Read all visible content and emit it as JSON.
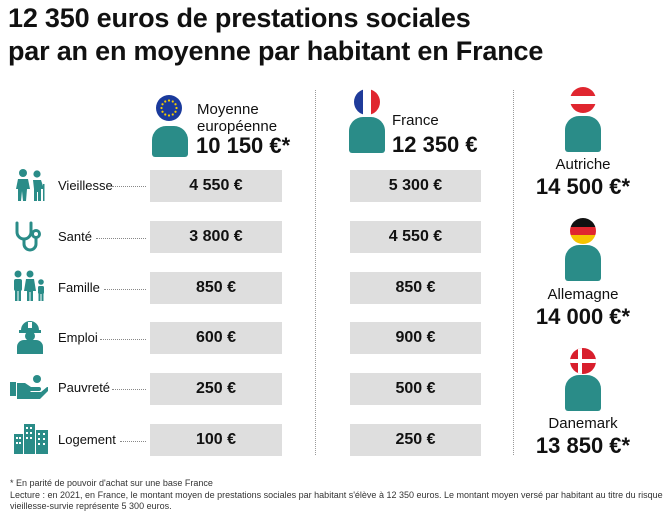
{
  "title_line1": "12 350 euros de prestations sociales",
  "title_line2": "par an en moyenne par habitant en France",
  "columns": {
    "eu": {
      "label1": "Moyenne",
      "label2": "européenne",
      "amount": "10 150 €*"
    },
    "fr": {
      "label": "France",
      "amount": "12 350 €"
    }
  },
  "rows": [
    {
      "label": "Vieillesse",
      "eu": "4 550 €",
      "fr": "5 300 €",
      "icon": "elderly-couple-icon"
    },
    {
      "label": "Santé",
      "eu": "3 800 €",
      "fr": "4 550 €",
      "icon": "stethoscope-icon"
    },
    {
      "label": "Famille",
      "eu": "850 €",
      "fr": "850 €",
      "icon": "family-icon"
    },
    {
      "label": "Emploi",
      "eu": "600 €",
      "fr": "900 €",
      "icon": "worker-icon"
    },
    {
      "label": "Pauvreté",
      "eu": "250 €",
      "fr": "500 €",
      "icon": "helping-hand-icon"
    },
    {
      "label": "Logement",
      "eu": "100 €",
      "fr": "250 €",
      "icon": "buildings-icon"
    }
  ],
  "countries": [
    {
      "name": "Autriche",
      "amount": "14 500 €*",
      "flag": "austria-flag"
    },
    {
      "name": "Allemagne",
      "amount": "14 000 €*",
      "flag": "germany-flag"
    },
    {
      "name": "Danemark",
      "amount": "13 850 €*",
      "flag": "denmark-flag"
    }
  ],
  "footnote1": "* En parité de pouvoir d'achat sur une base France",
  "footnote2": "Lecture : en 2021, en France, le montant moyen de prestations sociales par habitant s'élève à 12 350 euros. Le montant moyen versé par habitant au titre du risque vieillesse-survie représente 5 300 euros.",
  "colors": {
    "teal": "#2a8c88",
    "cell": "#dedede",
    "icon": "#2a8c88"
  }
}
